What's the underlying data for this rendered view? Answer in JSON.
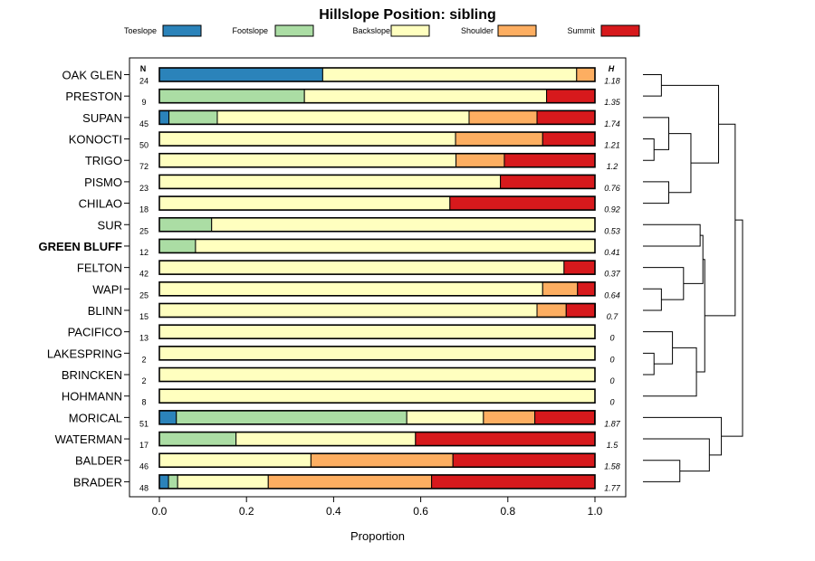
{
  "chart_data": {
    "type": "bar",
    "stacked": true,
    "orientation": "horizontal",
    "title": "Hillslope Position: sibling",
    "xlabel": "Proportion",
    "ylabel": "",
    "xlim": [
      0,
      1
    ],
    "xticks": [
      "0.0",
      "0.2",
      "0.4",
      "0.6",
      "0.8",
      "1.0"
    ],
    "n_header": "N",
    "h_header": "H",
    "highlight": "GREEN BLUFF",
    "legend_position": "top",
    "legend": [
      {
        "name": "Toeslope",
        "color": "#2b83ba"
      },
      {
        "name": "Footslope",
        "color": "#abdda4"
      },
      {
        "name": "Backslope",
        "color": "#ffffbf"
      },
      {
        "name": "Shoulder",
        "color": "#fdae61"
      },
      {
        "name": "Summit",
        "color": "#d7191c"
      }
    ],
    "categories": [
      "OAK GLEN",
      "PRESTON",
      "SUPAN",
      "KONOCTI",
      "TRIGO",
      "PISMO",
      "CHILAO",
      "SUR",
      "GREEN BLUFF",
      "FELTON",
      "WAPI",
      "BLINN",
      "PACIFICO",
      "LAKESPRING",
      "BRINCKEN",
      "HOHMANN",
      "MORICAL",
      "WATERMAN",
      "BALDER",
      "BRADER"
    ],
    "n": [
      "24",
      "9",
      "45",
      "50",
      "72",
      "23",
      "18",
      "25",
      "12",
      "42",
      "25",
      "15",
      "13",
      "2",
      "2",
      "8",
      "51",
      "17",
      "46",
      "48"
    ],
    "h": [
      "1.18",
      "1.35",
      "1.74",
      "1.21",
      "1.2",
      "0.76",
      "0.92",
      "0.53",
      "0.41",
      "0.37",
      "0.64",
      "0.7",
      "0",
      "0",
      "0",
      "0",
      "1.87",
      "1.5",
      "1.58",
      "1.77"
    ],
    "series": [
      {
        "name": "Toeslope",
        "values": [
          0.375,
          0,
          0.022,
          0,
          0,
          0,
          0,
          0,
          0,
          0,
          0,
          0,
          0,
          0,
          0,
          0,
          0.039,
          0,
          0,
          0.021
        ]
      },
      {
        "name": "Footslope",
        "values": [
          0,
          0.333,
          0.111,
          0,
          0,
          0,
          0,
          0.12,
          0.083,
          0,
          0,
          0,
          0,
          0,
          0,
          0,
          0.529,
          0.176,
          0,
          0.021
        ]
      },
      {
        "name": "Backslope",
        "values": [
          0.583,
          0.556,
          0.578,
          0.68,
          0.681,
          0.783,
          0.667,
          0.88,
          0.917,
          0.929,
          0.88,
          0.867,
          1,
          1,
          1,
          1,
          0.176,
          0.412,
          0.348,
          0.208
        ]
      },
      {
        "name": "Shoulder",
        "values": [
          0.042,
          0,
          0.156,
          0.2,
          0.111,
          0,
          0,
          0,
          0,
          0,
          0.08,
          0.067,
          0,
          0,
          0,
          0,
          0.118,
          0,
          0.326,
          0.375
        ]
      },
      {
        "name": "Summit",
        "values": [
          0,
          0.111,
          0.133,
          0.12,
          0.208,
          0.217,
          0.333,
          0,
          0,
          0.071,
          0.04,
          0.067,
          0,
          0,
          0,
          0,
          0.137,
          0.412,
          0.326,
          0.375
        ]
      }
    ],
    "dendrogram": {
      "method": "hierarchical clustering",
      "merges": [
        [
          -4,
          -5,
          0.12
        ],
        [
          -14,
          -15,
          0.12
        ],
        [
          -1,
          -2,
          0.2
        ],
        [
          -11,
          -12,
          0.2
        ],
        [
          1,
          -3,
          0.28
        ],
        [
          -6,
          -7,
          0.28
        ],
        [
          -13,
          2,
          0.32
        ],
        [
          -19,
          -20,
          0.4
        ],
        [
          -10,
          4,
          0.44
        ],
        [
          5,
          6,
          0.52
        ],
        [
          -16,
          7,
          0.58
        ],
        [
          -8,
          -9,
          0.62
        ],
        [
          12,
          9,
          0.65
        ],
        [
          -18,
          8,
          0.72
        ],
        [
          3,
          10,
          0.82
        ],
        [
          13,
          11,
          0.67
        ],
        [
          -17,
          14,
          0.85
        ],
        [
          15,
          16,
          1.0
        ],
        [
          18,
          17,
          1.08
        ]
      ]
    }
  }
}
